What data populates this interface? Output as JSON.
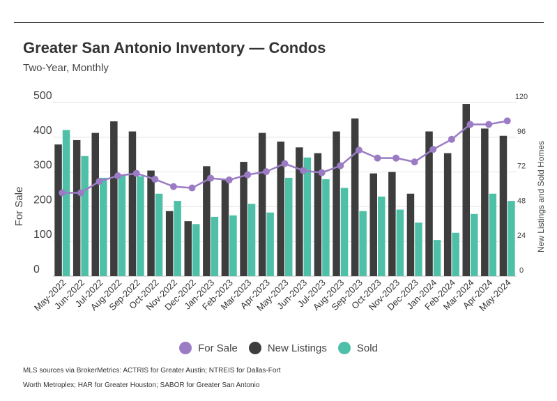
{
  "title": "Greater San Antonio Inventory — Condos",
  "subtitle": "Two-Year, Monthly",
  "source": "MLS sources via BrokerMetrics: ACTRIS for Greater Austin; NTREIS for Dallas-Fort Worth Metroplex; HAR for Greater Houston; SABOR for Greater San Antonio",
  "colors": {
    "for_sale": "#9b7cc4",
    "new_listings": "#3d3d3d",
    "sold": "#4fc0a8"
  },
  "chart_data": {
    "type": "bar",
    "title": "Greater San Antonio Inventory — Condos",
    "subtitle": "Two-Year, Monthly",
    "ylabel": "For Sale",
    "y2label": "New Listings and Sold Homes",
    "ylim": [
      0,
      500
    ],
    "y2lim": [
      0,
      120
    ],
    "yticks": [
      0,
      100,
      200,
      300,
      400,
      500
    ],
    "y2ticks": [
      0,
      24,
      48,
      72,
      96,
      120
    ],
    "grid": true,
    "legend_position": "bottom",
    "categories": [
      "May-2022",
      "Jun-2022",
      "Jul-2022",
      "Aug-2022",
      "Sep-2022",
      "Oct-2022",
      "Nov-2022",
      "Dec-2022",
      "Jan-2023",
      "Feb-2023",
      "Mar-2023",
      "Apr-2023",
      "May-2023",
      "Jun-2023",
      "Jul-2023",
      "Aug-2023",
      "Sep-2023",
      "Oct-2023",
      "Nov-2023",
      "Dec-2023",
      "Jan-2024",
      "Feb-2024",
      "Mar-2024",
      "Apr-2024",
      "May-2024"
    ],
    "series": [
      {
        "name": "For Sale",
        "type": "line",
        "axis": "left",
        "values": [
          240,
          240,
          273,
          289,
          296,
          279,
          258,
          254,
          282,
          277,
          292,
          301,
          324,
          304,
          298,
          318,
          363,
          340,
          340,
          329,
          365,
          394,
          437,
          437,
          447
        ]
      },
      {
        "name": "New Listings",
        "type": "bar",
        "axis": "right",
        "values": [
          91,
          94,
          99,
          107,
          100,
          73,
          45,
          38,
          76,
          67,
          79,
          99,
          93,
          89,
          85,
          100,
          109,
          71,
          72,
          57,
          100,
          85,
          119,
          102,
          97
        ]
      },
      {
        "name": "Sold",
        "type": "bar",
        "axis": "right",
        "values": [
          101,
          83,
          68,
          70,
          69,
          57,
          52,
          36,
          41,
          42,
          50,
          44,
          68,
          82,
          67,
          61,
          45,
          55,
          46,
          37,
          25,
          30,
          43,
          57,
          52
        ]
      }
    ]
  }
}
